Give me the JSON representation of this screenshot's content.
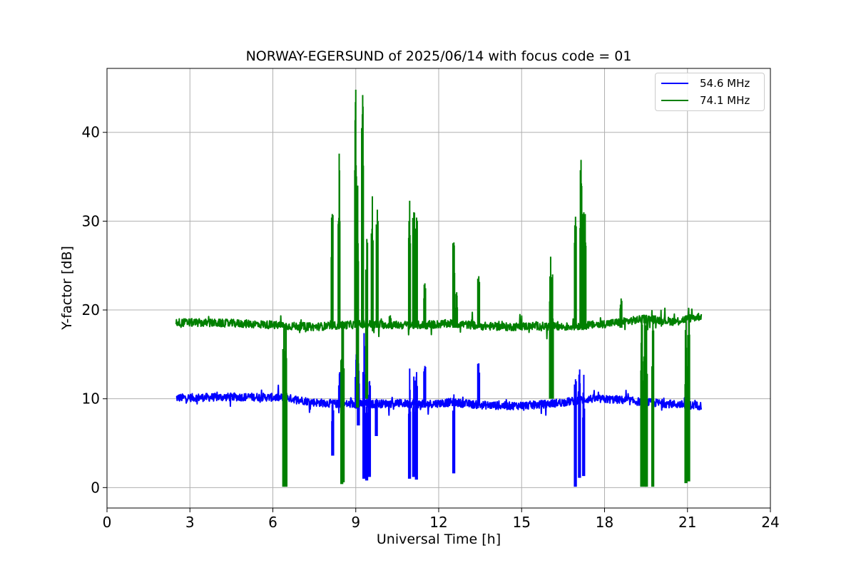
{
  "chart_data": {
    "type": "line",
    "title": "NORWAY-EGERSUND of 2025/06/14 with focus code = 01",
    "xlabel": "Universal Time [h]",
    "ylabel": "Y-factor [dB]",
    "xlim": [
      0,
      24
    ],
    "ylim": [
      -2.3,
      47.2
    ],
    "xticks": [
      0,
      3,
      6,
      9,
      12,
      15,
      18,
      21,
      24
    ],
    "yticks": [
      0,
      10,
      20,
      30,
      40
    ],
    "grid": true,
    "legend_position": "top-right",
    "series": [
      {
        "name": "54.6 MHz",
        "color": "#0000ff",
        "x_range": [
          2.5,
          21.5
        ],
        "baseline": [
          [
            2.5,
            10.1
          ],
          [
            4.5,
            10.2
          ],
          [
            5.5,
            10.2
          ],
          [
            6.5,
            10.1
          ],
          [
            7.5,
            9.6
          ],
          [
            8.5,
            9.4
          ],
          [
            9.5,
            9.4
          ],
          [
            10.5,
            9.5
          ],
          [
            11.5,
            9.4
          ],
          [
            12.5,
            9.6
          ],
          [
            13.5,
            9.3
          ],
          [
            14.5,
            9.2
          ],
          [
            15.5,
            9.3
          ],
          [
            16.5,
            9.6
          ],
          [
            17.5,
            10.0
          ],
          [
            18.5,
            9.9
          ],
          [
            19.5,
            9.6
          ],
          [
            20.5,
            9.4
          ],
          [
            21.5,
            9.2
          ]
        ],
        "spikes": [
          [
            8.17,
            3.6,
            9.7
          ],
          [
            8.42,
            9.0,
            13.0
          ],
          [
            9.02,
            9.0,
            15.0
          ],
          [
            9.1,
            7.0,
            14.0
          ],
          [
            9.3,
            1.0,
            17.4
          ],
          [
            9.4,
            0.8,
            13.0
          ],
          [
            9.5,
            1.2,
            12.0
          ],
          [
            9.75,
            5.8,
            10.0
          ],
          [
            10.95,
            1.0,
            13.4
          ],
          [
            11.1,
            1.2,
            12.5
          ],
          [
            11.2,
            0.9,
            13.0
          ],
          [
            11.5,
            9.0,
            13.7
          ],
          [
            12.55,
            1.6,
            10.5
          ],
          [
            13.45,
            9.3,
            14.0
          ],
          [
            16.95,
            0.1,
            12.2
          ],
          [
            17.1,
            1.1,
            13.3
          ],
          [
            17.25,
            1.3,
            12.7
          ]
        ]
      },
      {
        "name": "74.1 MHz",
        "color": "#008000",
        "x_range": [
          2.5,
          21.5
        ],
        "baseline": [
          [
            2.5,
            18.6
          ],
          [
            4.5,
            18.5
          ],
          [
            5.5,
            18.4
          ],
          [
            6.5,
            18.2
          ],
          [
            7.5,
            18.1
          ],
          [
            8.5,
            18.3
          ],
          [
            9.5,
            18.4
          ],
          [
            10.5,
            18.3
          ],
          [
            11.5,
            18.3
          ],
          [
            12.5,
            18.5
          ],
          [
            13.5,
            18.2
          ],
          [
            14.5,
            18.1
          ],
          [
            15.5,
            18.2
          ],
          [
            16.5,
            18.1
          ],
          [
            17.5,
            18.3
          ],
          [
            18.5,
            18.6
          ],
          [
            19.5,
            19.0
          ],
          [
            20.5,
            18.7
          ],
          [
            21.5,
            19.3
          ]
        ],
        "spikes": [
          [
            6.4,
            0.1,
            18.3
          ],
          [
            6.48,
            0.1,
            18.3
          ],
          [
            8.15,
            18.0,
            30.8
          ],
          [
            8.4,
            18.0,
            37.6
          ],
          [
            8.5,
            0.4,
            18.4
          ],
          [
            8.55,
            0.6,
            18.4
          ],
          [
            9.0,
            18.0,
            44.8
          ],
          [
            9.07,
            9.0,
            34.0
          ],
          [
            9.25,
            18.0,
            44.2
          ],
          [
            9.4,
            10.0,
            28.0
          ],
          [
            9.6,
            18.0,
            32.8
          ],
          [
            9.78,
            18.0,
            31.3
          ],
          [
            10.25,
            18.0,
            19.4
          ],
          [
            10.95,
            18.0,
            32.3
          ],
          [
            11.1,
            18.0,
            31.0
          ],
          [
            11.2,
            18.0,
            30.4
          ],
          [
            11.5,
            18.0,
            23.0
          ],
          [
            12.55,
            18.0,
            27.6
          ],
          [
            12.65,
            18.0,
            22.0
          ],
          [
            13.45,
            18.0,
            23.8
          ],
          [
            16.05,
            10.0,
            26.0
          ],
          [
            16.12,
            10.0,
            24.0
          ],
          [
            16.95,
            18.0,
            30.5
          ],
          [
            17.15,
            18.0,
            36.9
          ],
          [
            17.25,
            18.0,
            31.0
          ],
          [
            17.3,
            18.0,
            30.8
          ],
          [
            18.6,
            18.0,
            21.3
          ],
          [
            19.35,
            0.1,
            19.4
          ],
          [
            19.45,
            0.1,
            19.4
          ],
          [
            19.52,
            0.1,
            19.4
          ],
          [
            19.75,
            0.1,
            19.4
          ],
          [
            20.95,
            0.5,
            19.4
          ],
          [
            21.05,
            0.7,
            19.4
          ]
        ]
      }
    ]
  }
}
